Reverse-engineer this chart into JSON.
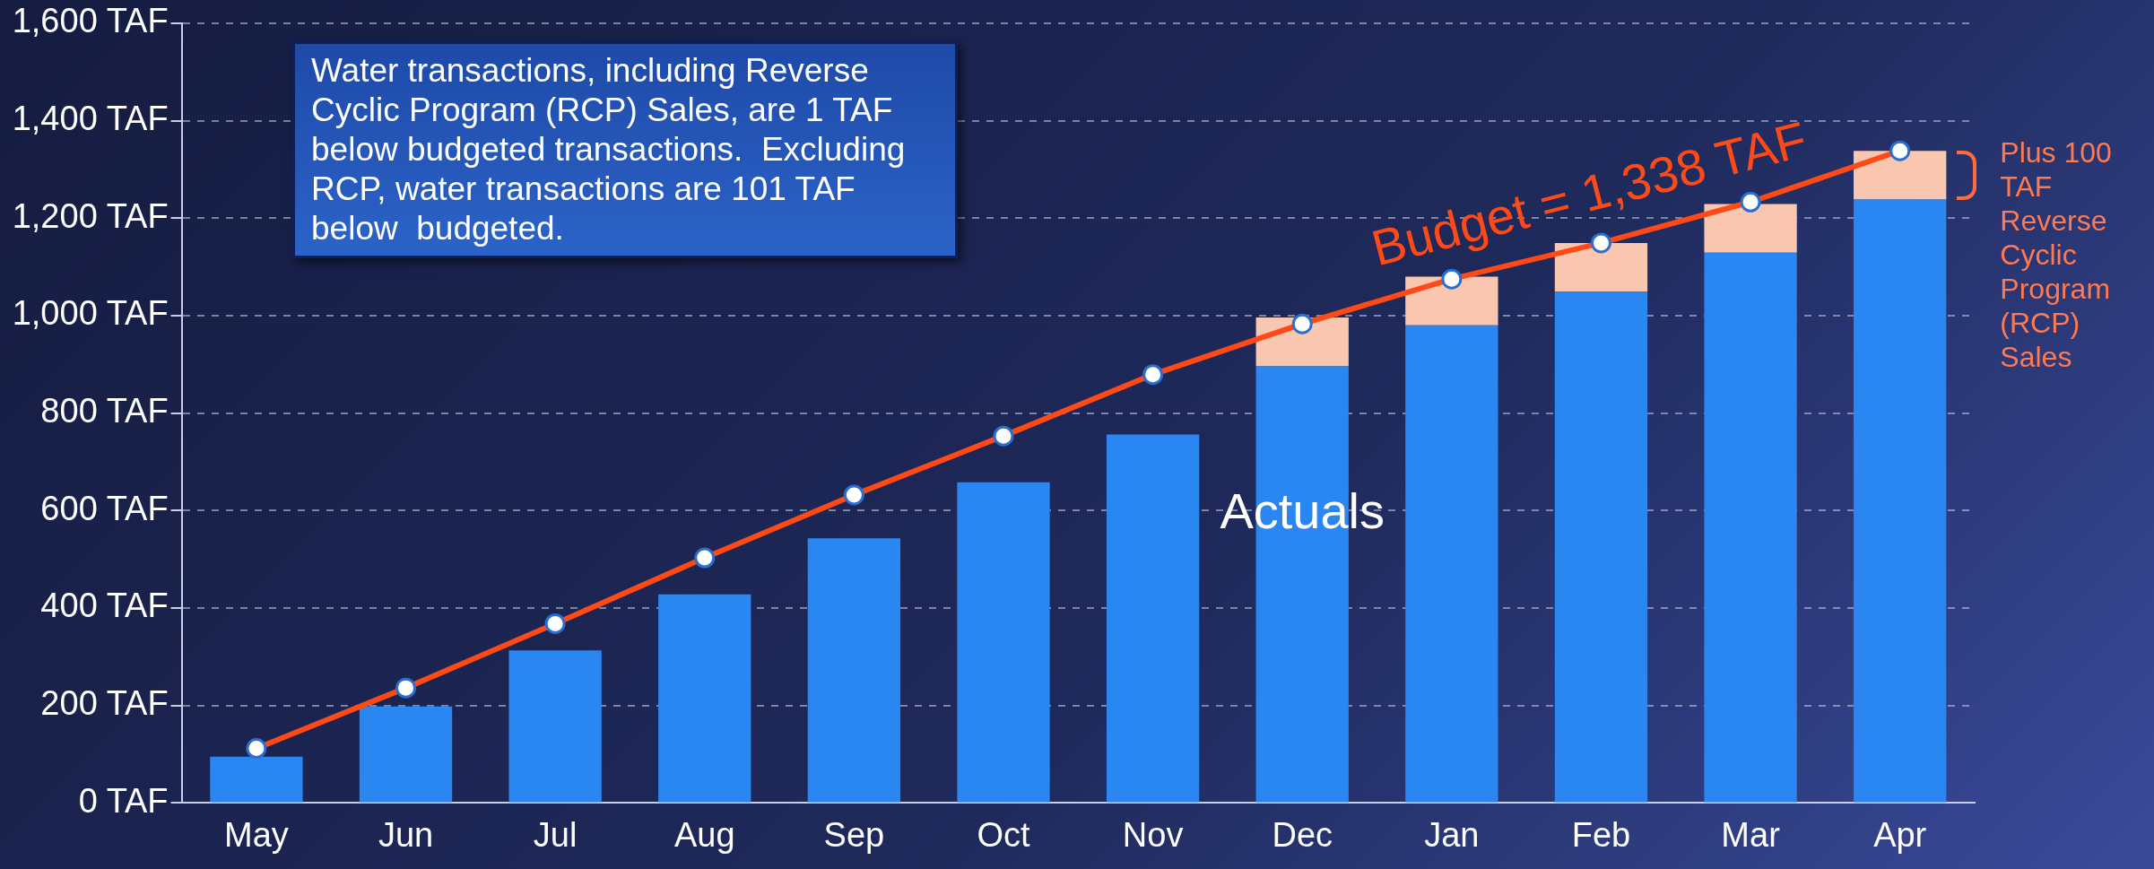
{
  "chart_data": {
    "type": "bar",
    "stacked": true,
    "categories": [
      "May",
      "Jun",
      "Jul",
      "Aug",
      "Sep",
      "Oct",
      "Nov",
      "Dec",
      "Jan",
      "Feb",
      "Mar",
      "Apr"
    ],
    "series": [
      {
        "name": "Actuals",
        "color": "#2a86f0",
        "values": [
          95,
          198,
          313,
          428,
          543,
          658,
          756,
          896,
          980,
          1049,
          1129,
          1238
        ]
      },
      {
        "name": "Plus 100 TAF Reverse Cyclic Program (RCP) Sales",
        "color": "#f9c6b0",
        "values": [
          null,
          null,
          null,
          null,
          null,
          null,
          null,
          100,
          100,
          100,
          100,
          100
        ]
      },
      {
        "name": "Budget = 1,338 TAF",
        "type": "line",
        "color": "#ff4a17",
        "values": [
          112,
          236,
          368,
          503,
          632,
          753,
          879,
          983,
          1075,
          1149,
          1233,
          1338
        ]
      }
    ],
    "ylim": [
      0,
      1600
    ],
    "yticks": [
      {
        "value": 0,
        "label": "0 TAF"
      },
      {
        "value": 200,
        "label": "200 TAF"
      },
      {
        "value": 400,
        "label": "400 TAF"
      },
      {
        "value": 600,
        "label": "600 TAF"
      },
      {
        "value": 800,
        "label": "800 TAF"
      },
      {
        "value": 1000,
        "label": "1,000 TAF"
      },
      {
        "value": 1200,
        "label": "1,200 TAF"
      },
      {
        "value": 1400,
        "label": "1,400 TAF"
      },
      {
        "value": 1600,
        "label": "1,600 TAF"
      }
    ],
    "grid": "y",
    "legend": false,
    "marker": "circle",
    "line_style": "solid",
    "annotations": [
      "Water transactions, including Reverse Cyclic Program (RCP) Sales, are 1 TAF below budgeted transactions.  Excluding RCP, water transactions are 101 TAF below  budgeted."
    ]
  }
}
